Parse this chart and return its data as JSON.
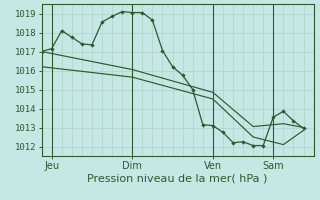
{
  "xlabel": "Pression niveau de la mer( hPa )",
  "bg_color": "#c5e8e5",
  "line_color": "#2a5c2a",
  "grid_color": "#b0d0cc",
  "ylim": [
    1011.5,
    1019.5
  ],
  "xlim": [
    0,
    27
  ],
  "yticks": [
    1012,
    1013,
    1014,
    1015,
    1016,
    1017,
    1018,
    1019
  ],
  "day_labels": [
    "Jeu",
    "Dim",
    "Ven",
    "Sam"
  ],
  "day_positions": [
    1,
    9,
    17,
    23
  ],
  "vline_positions": [
    1,
    9,
    17,
    23
  ],
  "line1_x": [
    0,
    1,
    2,
    3,
    4,
    5,
    6,
    7,
    8,
    9,
    10,
    11,
    12,
    13,
    14,
    15,
    16,
    17,
    18,
    19,
    20,
    21,
    22,
    23,
    24,
    25,
    26
  ],
  "line1_y": [
    1017.0,
    1017.15,
    1018.1,
    1017.75,
    1017.4,
    1017.35,
    1018.55,
    1018.85,
    1019.1,
    1019.05,
    1019.05,
    1018.65,
    1017.05,
    1016.2,
    1015.75,
    1015.0,
    1013.15,
    1013.1,
    1012.75,
    1012.2,
    1012.25,
    1012.05,
    1012.05,
    1013.55,
    1013.85,
    1013.35,
    1012.95
  ],
  "line2_x": [
    0,
    9,
    17,
    21,
    24,
    26
  ],
  "line2_y": [
    1017.0,
    1016.05,
    1014.85,
    1013.05,
    1013.2,
    1013.0
  ],
  "line3_x": [
    0,
    9,
    17,
    21,
    24,
    26
  ],
  "line3_y": [
    1016.2,
    1015.65,
    1014.5,
    1012.5,
    1012.1,
    1012.85
  ],
  "xlabel_fontsize": 8,
  "ytick_fontsize": 6.5,
  "xtick_fontsize": 7
}
